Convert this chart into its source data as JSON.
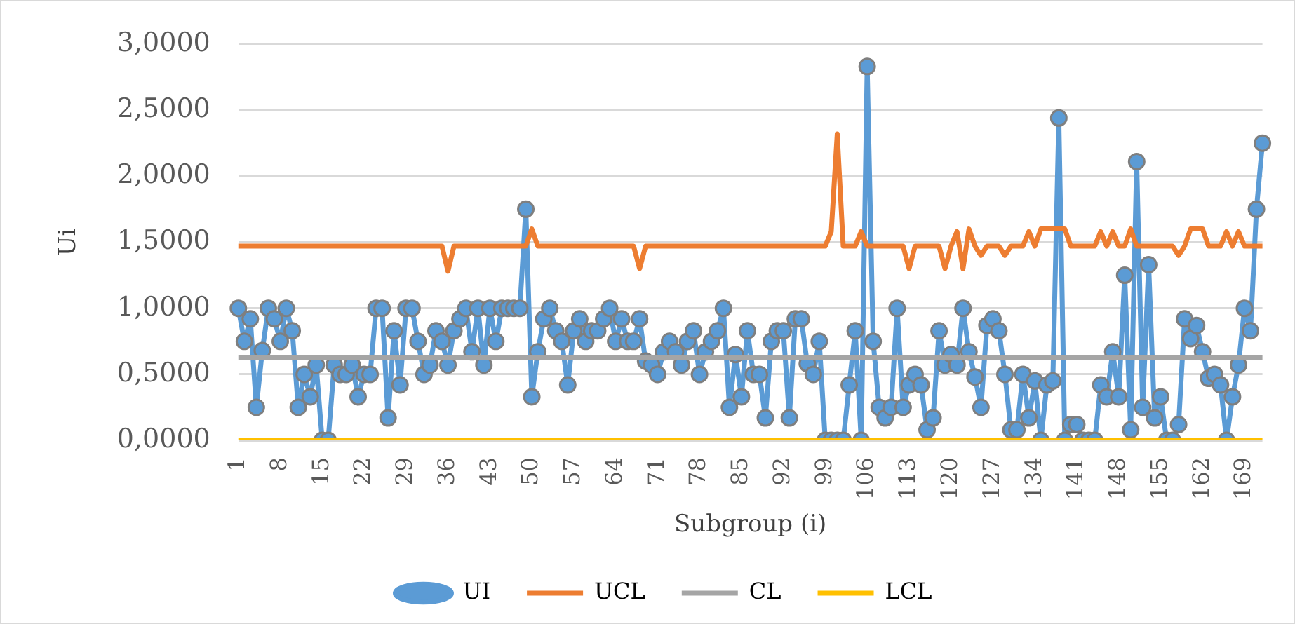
{
  "chart_data": {
    "type": "line",
    "categories": [
      "1",
      null,
      null,
      null,
      null,
      null,
      null,
      "8",
      null,
      null,
      null,
      null,
      null,
      null,
      "15",
      null,
      null,
      null,
      null,
      null,
      null,
      "22",
      null,
      null,
      null,
      null,
      null,
      null,
      "29",
      null,
      null,
      null,
      null,
      null,
      null,
      "36",
      null,
      null,
      null,
      null,
      null,
      null,
      "43",
      null,
      null,
      null,
      null,
      null,
      null,
      "50",
      null,
      null,
      null,
      null,
      null,
      null,
      "57",
      null,
      null,
      null,
      null,
      null,
      null,
      "64",
      null,
      null,
      null,
      null,
      null,
      null,
      "71",
      null,
      null,
      null,
      null,
      null,
      null,
      "78",
      null,
      null,
      null,
      null,
      null,
      null,
      "85",
      null,
      null,
      null,
      null,
      null,
      null,
      "92",
      null,
      null,
      null,
      null,
      null,
      null,
      "99",
      null,
      null,
      null,
      null,
      null,
      null,
      "106",
      null,
      null,
      null,
      null,
      null,
      null,
      "113",
      null,
      null,
      null,
      null,
      null,
      null,
      "120",
      null,
      null,
      null,
      null,
      null,
      null,
      "127",
      null,
      null,
      null,
      null,
      null,
      null,
      "134",
      null,
      null,
      null,
      null,
      null,
      null,
      "141",
      null,
      null,
      null,
      null,
      null,
      null,
      "148",
      null,
      null,
      null,
      null,
      null,
      null,
      "155",
      null,
      null,
      null,
      null,
      null,
      null,
      "162",
      null,
      null,
      null,
      null,
      null,
      null,
      "169",
      null,
      null,
      null
    ],
    "series": [
      {
        "name": "UI",
        "color": "#5b9bd5",
        "marker": "circle",
        "values": [
          1.0,
          0.75,
          0.92,
          0.25,
          0.68,
          1.0,
          0.92,
          0.75,
          1.0,
          0.83,
          0.25,
          0.5,
          0.33,
          0.57,
          0,
          0,
          0.57,
          0.5,
          0.5,
          0.57,
          0.33,
          0.5,
          0.5,
          1.0,
          1.0,
          0.17,
          0.83,
          0.42,
          1.0,
          1.0,
          0.75,
          0.5,
          0.57,
          0.83,
          0.75,
          0.57,
          0.83,
          0.92,
          1.0,
          0.67,
          1.0,
          0.57,
          1.0,
          0.75,
          1.0,
          1.0,
          1.0,
          1.0,
          1.75,
          0.33,
          0.67,
          0.92,
          1.0,
          0.83,
          0.75,
          0.42,
          0.83,
          0.92,
          0.75,
          0.83,
          0.83,
          0.92,
          1.0,
          0.75,
          0.92,
          0.75,
          0.75,
          0.92,
          0.6,
          0.57,
          0.5,
          0.67,
          0.75,
          0.67,
          0.57,
          0.75,
          0.83,
          0.5,
          0.67,
          0.75,
          0.83,
          1.0,
          0.25,
          0.65,
          0.33,
          0.83,
          0.5,
          0.5,
          0.17,
          0.75,
          0.83,
          0.83,
          0.17,
          0.92,
          0.92,
          0.58,
          0.5,
          0.75,
          0,
          0,
          0,
          0,
          0.42,
          0.83,
          0,
          2.83,
          0.75,
          0.25,
          0.17,
          0.25,
          1.0,
          0.25,
          0.42,
          0.5,
          0.42,
          0.08,
          0.17,
          0.83,
          0.57,
          0.65,
          0.57,
          1.0,
          0.67,
          0.48,
          0.25,
          0.87,
          0.92,
          0.83,
          0.5,
          0.08,
          0.08,
          0.5,
          0.17,
          0.45,
          0,
          0.42,
          0.45,
          2.44,
          0,
          0.12,
          0.12,
          0,
          0,
          0,
          0.42,
          0.33,
          0.67,
          0.33,
          1.25,
          0.08,
          2.11,
          0.25,
          1.33,
          0.17,
          0.33,
          0,
          0,
          0.12,
          0.92,
          0.77,
          0.87,
          0.67,
          0.47,
          0.5,
          0.42,
          0,
          0.33,
          0.57,
          1.0,
          0.83,
          1.75,
          2.25
        ]
      },
      {
        "name": "UCL",
        "color": "#ed7d31",
        "marker": "none",
        "values": [
          1.47,
          1.47,
          1.47,
          1.47,
          1.47,
          1.47,
          1.47,
          1.47,
          1.47,
          1.47,
          1.47,
          1.47,
          1.47,
          1.47,
          1.47,
          1.47,
          1.47,
          1.47,
          1.47,
          1.47,
          1.47,
          1.47,
          1.47,
          1.47,
          1.47,
          1.47,
          1.47,
          1.47,
          1.47,
          1.47,
          1.47,
          1.47,
          1.47,
          1.47,
          1.47,
          1.28,
          1.47,
          1.47,
          1.47,
          1.47,
          1.47,
          1.47,
          1.47,
          1.47,
          1.47,
          1.47,
          1.47,
          1.47,
          1.47,
          1.6,
          1.47,
          1.47,
          1.47,
          1.47,
          1.47,
          1.47,
          1.47,
          1.47,
          1.47,
          1.47,
          1.47,
          1.47,
          1.47,
          1.47,
          1.47,
          1.47,
          1.47,
          1.3,
          1.47,
          1.47,
          1.47,
          1.47,
          1.47,
          1.47,
          1.47,
          1.47,
          1.47,
          1.47,
          1.47,
          1.47,
          1.47,
          1.47,
          1.47,
          1.47,
          1.47,
          1.47,
          1.47,
          1.47,
          1.47,
          1.47,
          1.47,
          1.47,
          1.47,
          1.47,
          1.47,
          1.47,
          1.47,
          1.47,
          1.47,
          1.58,
          2.32,
          1.47,
          1.47,
          1.47,
          1.58,
          1.47,
          1.47,
          1.47,
          1.47,
          1.47,
          1.47,
          1.47,
          1.3,
          1.47,
          1.47,
          1.47,
          1.47,
          1.47,
          1.3,
          1.47,
          1.58,
          1.3,
          1.6,
          1.47,
          1.4,
          1.47,
          1.47,
          1.47,
          1.4,
          1.47,
          1.47,
          1.47,
          1.58,
          1.47,
          1.6,
          1.6,
          1.6,
          1.6,
          1.6,
          1.47,
          1.47,
          1.47,
          1.47,
          1.47,
          1.58,
          1.47,
          1.58,
          1.47,
          1.47,
          1.6,
          1.47,
          1.47,
          1.47,
          1.47,
          1.47,
          1.47,
          1.47,
          1.4,
          1.47,
          1.6,
          1.6,
          1.6,
          1.47,
          1.47,
          1.47,
          1.58,
          1.47,
          1.58,
          1.47,
          1.47,
          1.47,
          1.47
        ]
      },
      {
        "name": "CL",
        "color": "#a5a5a5",
        "marker": "none",
        "values": [
          0.63,
          0.63,
          0.63,
          0.63,
          0.63,
          0.63,
          0.63,
          0.63,
          0.63,
          0.63,
          0.63,
          0.63,
          0.63,
          0.63,
          0.63,
          0.63,
          0.63,
          0.63,
          0.63,
          0.63,
          0.63,
          0.63,
          0.63,
          0.63,
          0.63,
          0.63,
          0.63,
          0.63,
          0.63,
          0.63,
          0.63,
          0.63,
          0.63,
          0.63,
          0.63,
          0.63,
          0.63,
          0.63,
          0.63,
          0.63,
          0.63,
          0.63,
          0.63,
          0.63,
          0.63,
          0.63,
          0.63,
          0.63,
          0.63,
          0.63,
          0.63,
          0.63,
          0.63,
          0.63,
          0.63,
          0.63,
          0.63,
          0.63,
          0.63,
          0.63,
          0.63,
          0.63,
          0.63,
          0.63,
          0.63,
          0.63,
          0.63,
          0.63,
          0.63,
          0.63,
          0.63,
          0.63,
          0.63,
          0.63,
          0.63,
          0.63,
          0.63,
          0.63,
          0.63,
          0.63,
          0.63,
          0.63,
          0.63,
          0.63,
          0.63,
          0.63,
          0.63,
          0.63,
          0.63,
          0.63,
          0.63,
          0.63,
          0.63,
          0.63,
          0.63,
          0.63,
          0.63,
          0.63,
          0.63,
          0.63,
          0.63,
          0.63,
          0.63,
          0.63,
          0.63,
          0.63,
          0.63,
          0.63,
          0.63,
          0.63,
          0.63,
          0.63,
          0.63,
          0.63,
          0.63,
          0.63,
          0.63,
          0.63,
          0.63,
          0.63,
          0.63,
          0.63,
          0.63,
          0.63,
          0.63,
          0.63,
          0.63,
          0.63,
          0.63,
          0.63,
          0.63,
          0.63,
          0.63,
          0.63,
          0.63,
          0.63,
          0.63,
          0.63,
          0.63,
          0.63,
          0.63,
          0.63,
          0.63,
          0.63,
          0.63,
          0.63,
          0.63,
          0.63,
          0.63,
          0.63,
          0.63,
          0.63,
          0.63,
          0.63,
          0.63,
          0.63,
          0.63,
          0.63,
          0.63,
          0.63,
          0.63,
          0.63,
          0.63,
          0.63,
          0.63,
          0.63,
          0.63,
          0.63,
          0.63,
          0.63,
          0.63,
          0.63
        ]
      },
      {
        "name": "LCL",
        "color": "#ffc000",
        "marker": "none",
        "values": [
          0,
          0,
          0,
          0,
          0,
          0,
          0,
          0,
          0,
          0,
          0,
          0,
          0,
          0,
          0,
          0,
          0,
          0,
          0,
          0,
          0,
          0,
          0,
          0,
          0,
          0,
          0,
          0,
          0,
          0,
          0,
          0,
          0,
          0,
          0,
          0,
          0,
          0,
          0,
          0,
          0,
          0,
          0,
          0,
          0,
          0,
          0,
          0,
          0,
          0,
          0,
          0,
          0,
          0,
          0,
          0,
          0,
          0,
          0,
          0,
          0,
          0,
          0,
          0,
          0,
          0,
          0,
          0,
          0,
          0,
          0,
          0,
          0,
          0,
          0,
          0,
          0,
          0,
          0,
          0,
          0,
          0,
          0,
          0,
          0,
          0,
          0,
          0,
          0,
          0,
          0,
          0,
          0,
          0,
          0,
          0,
          0,
          0,
          0,
          0,
          0,
          0,
          0,
          0,
          0,
          0,
          0,
          0,
          0,
          0,
          0,
          0,
          0,
          0,
          0,
          0,
          0,
          0,
          0,
          0,
          0,
          0,
          0,
          0,
          0,
          0,
          0,
          0,
          0,
          0,
          0,
          0,
          0,
          0,
          0,
          0,
          0,
          0,
          0,
          0,
          0,
          0,
          0,
          0,
          0,
          0,
          0,
          0,
          0,
          0,
          0,
          0,
          0,
          0,
          0,
          0,
          0,
          0,
          0,
          0,
          0,
          0,
          0,
          0,
          0,
          0,
          0,
          0,
          0,
          0,
          0,
          0
        ]
      }
    ],
    "xlabel": "Subgroup (i)",
    "ylabel": "Ui",
    "ylim": [
      0,
      3
    ],
    "yticks": [
      {
        "value": 0,
        "label": "0,0000"
      },
      {
        "value": 0.5,
        "label": "0,5000"
      },
      {
        "value": 1,
        "label": "1,0000"
      },
      {
        "value": 1.5,
        "label": "1,5000"
      },
      {
        "value": 2,
        "label": "2,0000"
      },
      {
        "value": 2.5,
        "label": "2,5000"
      },
      {
        "value": 3,
        "label": "3,0000"
      }
    ],
    "grid": "y",
    "legend": "bottom"
  }
}
